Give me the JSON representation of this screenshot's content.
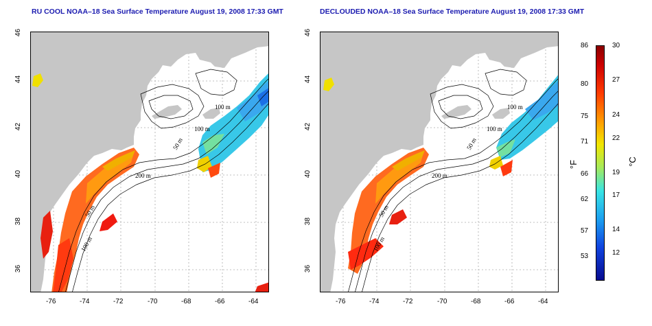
{
  "panels": [
    {
      "title": "RU COOL NOAA–18 Sea Surface Temperature August 19, 2008 17:33 GMT"
    },
    {
      "title": "DECLOUDED NOAA–18 Sea Surface Temperature August 19, 2008 17:33 GMT"
    }
  ],
  "axes": {
    "x_ticks": [
      "-76",
      "-74",
      "-72",
      "-70",
      "-68",
      "-66",
      "-64"
    ],
    "y_ticks": [
      "46",
      "44",
      "42",
      "40",
      "38",
      "36"
    ],
    "lon_range": [
      -77,
      -63
    ],
    "lat_range": [
      35,
      46
    ]
  },
  "contour_labels": {
    "left": [
      "100 m",
      "100 m",
      "50 m",
      "200 m",
      "50 m",
      "100 m"
    ],
    "right": [
      "100 m",
      "100 m",
      "50 m",
      "200 m",
      "50 m",
      "100 m"
    ]
  },
  "colorbar": {
    "fahrenheit_ticks": [
      "86",
      "80",
      "75",
      "71",
      "66",
      "62",
      "57",
      "53"
    ],
    "celsius_ticks": [
      "30",
      "27",
      "24",
      "22",
      "19",
      "17",
      "14",
      "12"
    ],
    "fahrenheit_unit": "°F",
    "celsius_unit": "°C"
  },
  "colors": {
    "land": "#c6c6c6",
    "title": "#1b1bb0",
    "grid": "#999999"
  }
}
